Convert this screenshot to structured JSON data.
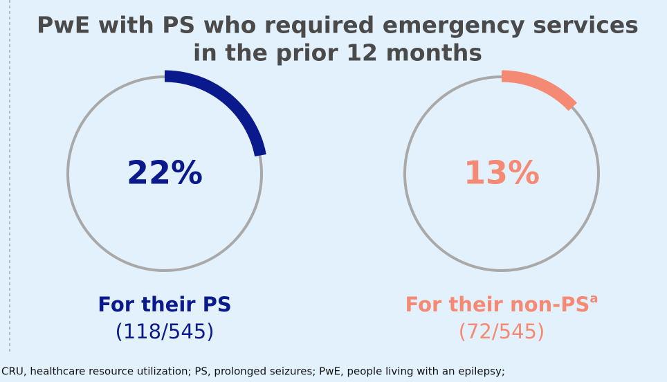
{
  "title_lines": [
    "PwE with PS who required emergency services",
    "in the prior 12 months"
  ],
  "footnote": "CRU, healthcare resource utilization; PS, prolonged seizures; PwE, people living with an epilepsy;",
  "chart_data": [
    {
      "type": "donut",
      "values": [
        22
      ],
      "value_labels": [
        "22%"
      ],
      "color": "#0a1a8c",
      "label": "For their PS",
      "sublabel": "(118/545)"
    },
    {
      "type": "donut",
      "values": [
        13
      ],
      "value_labels": [
        "13%"
      ],
      "color": "#f58a74",
      "label": "For their non-PS",
      "label_superscript": "a",
      "sublabel": "(72/545)"
    }
  ]
}
